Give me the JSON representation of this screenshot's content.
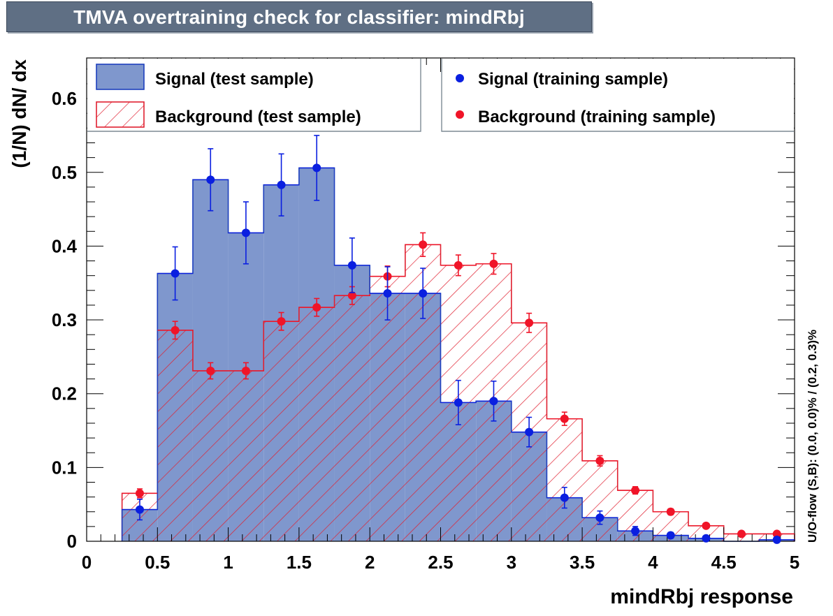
{
  "title": "TMVA overtraining check for classifier: mindRbj",
  "chart_data": {
    "type": "bar",
    "xlabel": "mindRbj response",
    "ylabel": "(1/N) dN/ dx",
    "side_label": "U/O-flow (S,B): (0.0, 0.0)% / (0.2, 0.3)%",
    "xlim": [
      0,
      5
    ],
    "ylim": [
      0,
      0.655
    ],
    "x_ticks": [
      "0",
      "0.5",
      "1",
      "1.5",
      "2",
      "2.5",
      "3",
      "3.5",
      "4",
      "4.5",
      "5"
    ],
    "y_ticks": [
      "0",
      "0.1",
      "0.2",
      "0.3",
      "0.4",
      "0.5",
      "0.6"
    ],
    "bin_edges": [
      0.25,
      0.5,
      0.75,
      1.0,
      1.25,
      1.5,
      1.75,
      2.0,
      2.25,
      2.5,
      2.75,
      3.0,
      3.25,
      3.5,
      3.75,
      4.0,
      4.25,
      4.5,
      4.75,
      5.0
    ],
    "colors": {
      "signal_fill": "#7f97cd",
      "signal_line": "#1d3fbd",
      "signal_point": "#0a1fe0",
      "background_line": "#e02030",
      "background_point": "#f01428"
    },
    "legend": [
      {
        "label": "Signal (test sample)",
        "style": "filled-box"
      },
      {
        "label": "Background (test sample)",
        "style": "hatched-box"
      },
      {
        "label": "Signal (training sample)",
        "style": "blue-dot"
      },
      {
        "label": "Background (training sample)",
        "style": "red-dot"
      }
    ],
    "series": [
      {
        "name": "Signal (test sample)",
        "values": [
          0.043,
          0.363,
          0.49,
          0.418,
          0.483,
          0.506,
          0.374,
          0.336,
          0.336,
          0.188,
          0.19,
          0.148,
          0.059,
          0.032,
          0.014,
          0.008,
          0.004,
          0.0,
          0.002
        ]
      },
      {
        "name": "Background (test sample)",
        "values": [
          0.065,
          0.286,
          0.231,
          0.231,
          0.298,
          0.317,
          0.333,
          0.359,
          0.402,
          0.374,
          0.376,
          0.296,
          0.166,
          0.109,
          0.069,
          0.04,
          0.021,
          0.01,
          0.01
        ]
      },
      {
        "name": "Signal (training sample)",
        "values": [
          0.043,
          0.363,
          0.49,
          0.418,
          0.483,
          0.506,
          0.374,
          0.336,
          0.336,
          0.188,
          0.19,
          0.148,
          0.059,
          0.032,
          0.014,
          0.008,
          0.004,
          null,
          0.002
        ],
        "errors": [
          0.014,
          0.036,
          0.042,
          0.042,
          0.042,
          0.044,
          0.037,
          0.036,
          0.034,
          0.03,
          0.027,
          0.02,
          0.014,
          0.009,
          0.006,
          0.004,
          0.002,
          null,
          0.001
        ]
      },
      {
        "name": "Background (training sample)",
        "values": [
          0.065,
          0.286,
          0.231,
          0.231,
          0.298,
          0.317,
          0.333,
          0.359,
          0.402,
          0.374,
          0.376,
          0.296,
          0.166,
          0.109,
          0.069,
          0.04,
          0.021,
          0.01,
          0.01
        ],
        "errors": [
          0.006,
          0.012,
          0.011,
          0.011,
          0.012,
          0.012,
          0.012,
          0.014,
          0.016,
          0.014,
          0.014,
          0.013,
          0.009,
          0.007,
          0.005,
          0.004,
          0.003,
          0.002,
          0.002
        ]
      }
    ]
  }
}
